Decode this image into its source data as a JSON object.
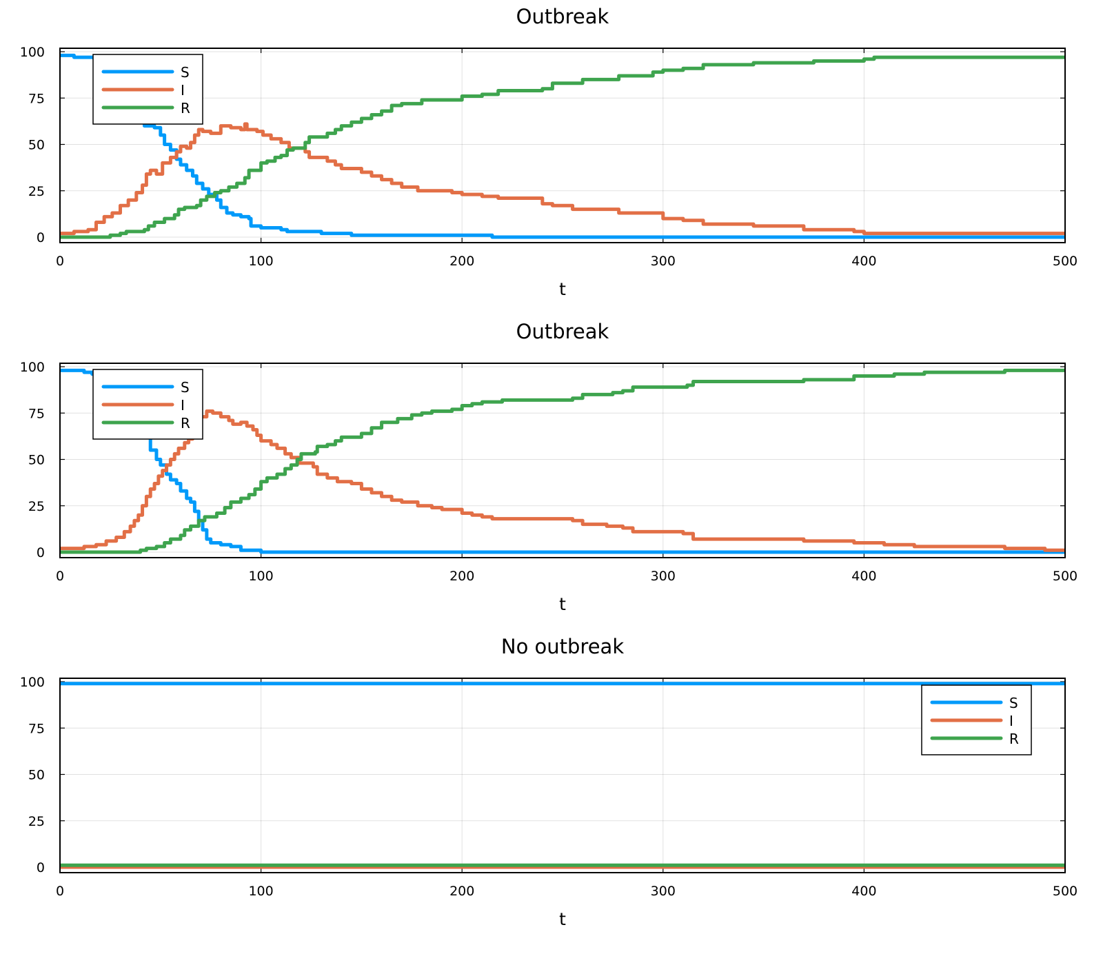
{
  "colors": {
    "S": "#009AFA",
    "I": "#E26F46",
    "R": "#3EA44E"
  },
  "chart_data": [
    {
      "type": "line",
      "title": "Outbreak",
      "xlabel": "t",
      "ylabel": "",
      "xlim": [
        0,
        500
      ],
      "ylim": [
        0,
        100
      ],
      "grid": true,
      "legend": "top-left",
      "xticks": [
        0,
        100,
        200,
        300,
        400,
        500
      ],
      "yticks": [
        0,
        25,
        50,
        75,
        100
      ],
      "series": [
        {
          "name": "S",
          "x": [
            0,
            7,
            17,
            25,
            42,
            47,
            50,
            52,
            55,
            58,
            60,
            63,
            66,
            68,
            71,
            74,
            78,
            80,
            83,
            86,
            90,
            94,
            95,
            100,
            110,
            113,
            130,
            145,
            215,
            500
          ],
          "y": [
            98,
            97,
            96,
            95,
            60,
            59,
            55,
            50,
            47,
            42,
            39,
            36,
            33,
            29,
            26,
            23,
            20,
            16,
            13,
            12,
            11,
            10,
            6,
            5,
            4,
            3,
            2,
            1,
            0,
            0
          ]
        },
        {
          "name": "I",
          "x": [
            0,
            7,
            14,
            18,
            22,
            26,
            30,
            34,
            38,
            41,
            43,
            45,
            48,
            51,
            55,
            58,
            60,
            63,
            65,
            67,
            69,
            71,
            75,
            78,
            80,
            85,
            90,
            92,
            93,
            98,
            101,
            105,
            110,
            114,
            118,
            122,
            124,
            130,
            133,
            137,
            140,
            145,
            150,
            155,
            160,
            165,
            170,
            178,
            195,
            200,
            210,
            218,
            235,
            240,
            245,
            255,
            278,
            290,
            300,
            310,
            320,
            345,
            370,
            395,
            400,
            500
          ],
          "y": [
            2,
            3,
            4,
            8,
            11,
            13,
            17,
            20,
            24,
            28,
            34,
            36,
            34,
            40,
            43,
            46,
            49,
            48,
            51,
            55,
            58,
            57,
            56,
            56,
            60,
            59,
            58,
            61,
            58,
            57,
            55,
            53,
            51,
            48,
            48,
            46,
            43,
            43,
            41,
            39,
            37,
            37,
            35,
            33,
            31,
            29,
            27,
            25,
            24,
            23,
            22,
            21,
            21,
            18,
            17,
            15,
            13,
            13,
            10,
            9,
            7,
            6,
            4,
            3,
            2,
            2
          ]
        },
        {
          "name": "R",
          "x": [
            0,
            25,
            30,
            33,
            42,
            44,
            47,
            52,
            57,
            59,
            62,
            68,
            70,
            73,
            77,
            80,
            84,
            88,
            92,
            94,
            100,
            103,
            107,
            110,
            113,
            116,
            122,
            124,
            130,
            133,
            137,
            140,
            145,
            150,
            155,
            160,
            165,
            170,
            180,
            200,
            210,
            218,
            240,
            245,
            260,
            278,
            295,
            300,
            310,
            320,
            345,
            375,
            400,
            405,
            500
          ],
          "y": [
            0,
            1,
            2,
            3,
            4,
            6,
            8,
            10,
            12,
            15,
            16,
            17,
            20,
            22,
            24,
            25,
            27,
            29,
            32,
            36,
            40,
            41,
            43,
            44,
            47,
            48,
            51,
            54,
            54,
            56,
            58,
            60,
            62,
            64,
            66,
            68,
            71,
            72,
            74,
            76,
            77,
            79,
            80,
            83,
            85,
            87,
            89,
            90,
            91,
            93,
            94,
            95,
            96,
            97,
            97
          ]
        }
      ]
    },
    {
      "type": "line",
      "title": "Outbreak",
      "xlabel": "t",
      "ylabel": "",
      "xlim": [
        0,
        500
      ],
      "ylim": [
        0,
        100
      ],
      "grid": true,
      "legend": "top-left",
      "xticks": [
        0,
        100,
        200,
        300,
        400,
        500
      ],
      "yticks": [
        0,
        25,
        50,
        75,
        100
      ],
      "series": [
        {
          "name": "S",
          "x": [
            0,
            12,
            16,
            45,
            48,
            50,
            53,
            55,
            58,
            60,
            63,
            65,
            67,
            69,
            71,
            73,
            75,
            80,
            85,
            90,
            100,
            500
          ],
          "y": [
            98,
            97,
            96,
            55,
            50,
            47,
            42,
            39,
            37,
            33,
            29,
            27,
            22,
            17,
            12,
            7,
            5,
            4,
            3,
            1,
            0,
            0
          ]
        },
        {
          "name": "I",
          "x": [
            0,
            12,
            18,
            23,
            28,
            32,
            35,
            37,
            39,
            41,
            43,
            45,
            47,
            49,
            51,
            53,
            55,
            57,
            59,
            62,
            64,
            66,
            68,
            70,
            73,
            76,
            80,
            84,
            86,
            90,
            93,
            96,
            98,
            100,
            105,
            108,
            112,
            115,
            119,
            126,
            128,
            133,
            138,
            145,
            150,
            155,
            160,
            165,
            170,
            178,
            185,
            190,
            200,
            205,
            210,
            215,
            255,
            260,
            272,
            280,
            285,
            310,
            315,
            370,
            395,
            410,
            425,
            470,
            490,
            500
          ],
          "y": [
            2,
            3,
            4,
            6,
            8,
            11,
            14,
            17,
            20,
            25,
            30,
            34,
            37,
            41,
            44,
            47,
            50,
            53,
            56,
            59,
            61,
            65,
            70,
            73,
            76,
            75,
            73,
            71,
            69,
            70,
            68,
            66,
            63,
            60,
            58,
            56,
            53,
            51,
            48,
            46,
            42,
            40,
            38,
            37,
            34,
            32,
            30,
            28,
            27,
            25,
            24,
            23,
            21,
            20,
            19,
            18,
            17,
            15,
            14,
            13,
            11,
            10,
            7,
            6,
            5,
            4,
            3,
            2,
            1,
            1
          ]
        },
        {
          "name": "R",
          "x": [
            0,
            40,
            43,
            48,
            52,
            55,
            60,
            62,
            65,
            69,
            72,
            78,
            82,
            85,
            90,
            94,
            97,
            100,
            103,
            108,
            112,
            115,
            118,
            120,
            127,
            128,
            133,
            137,
            140,
            150,
            155,
            160,
            168,
            175,
            180,
            185,
            195,
            200,
            205,
            210,
            220,
            255,
            260,
            275,
            280,
            285,
            312,
            315,
            370,
            395,
            415,
            430,
            470,
            500
          ],
          "y": [
            0,
            1,
            2,
            3,
            5,
            7,
            9,
            12,
            14,
            17,
            19,
            21,
            24,
            27,
            29,
            31,
            34,
            38,
            40,
            42,
            45,
            47,
            50,
            53,
            54,
            57,
            58,
            60,
            62,
            64,
            67,
            70,
            72,
            74,
            75,
            76,
            77,
            79,
            80,
            81,
            82,
            83,
            85,
            86,
            87,
            89,
            90,
            92,
            93,
            95,
            96,
            97,
            98,
            99
          ]
        }
      ]
    },
    {
      "type": "line",
      "title": "No outbreak",
      "xlabel": "t",
      "ylabel": "",
      "xlim": [
        0,
        500
      ],
      "ylim": [
        0,
        100
      ],
      "grid": true,
      "legend": "top-right",
      "xticks": [
        0,
        100,
        200,
        300,
        400,
        500
      ],
      "yticks": [
        0,
        25,
        50,
        75,
        100
      ],
      "series": [
        {
          "name": "S",
          "x": [
            0,
            500
          ],
          "y": [
            99,
            99
          ]
        },
        {
          "name": "I",
          "x": [
            0,
            500
          ],
          "y": [
            0,
            0
          ]
        },
        {
          "name": "R",
          "x": [
            0,
            500
          ],
          "y": [
            1,
            1
          ]
        }
      ]
    }
  ]
}
